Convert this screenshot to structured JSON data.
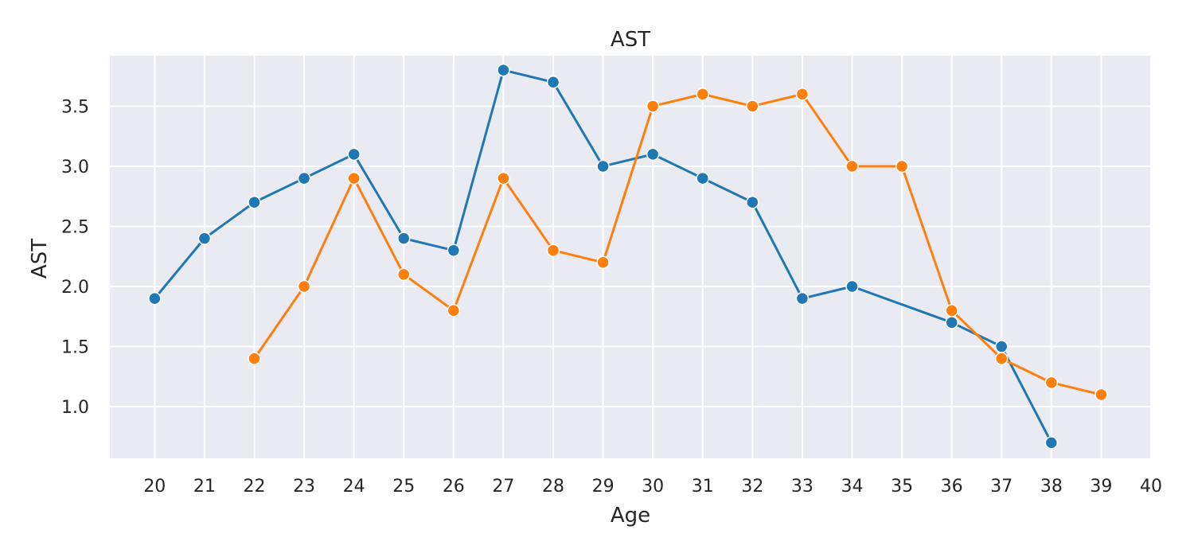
{
  "chart_data": {
    "type": "line",
    "title": "AST",
    "xlabel": "Age",
    "ylabel": "AST",
    "xlim": [
      19.1,
      40
    ],
    "ylim": [
      0.57,
      3.92
    ],
    "xticks": [
      20,
      21,
      22,
      23,
      24,
      25,
      26,
      27,
      28,
      29,
      30,
      31,
      32,
      33,
      34,
      35,
      36,
      37,
      38,
      39,
      40
    ],
    "yticks": [
      1.0,
      1.5,
      2.0,
      2.5,
      3.0,
      3.5
    ],
    "grid": true,
    "legend": "none",
    "background": "#eaeaf2",
    "series": [
      {
        "color": "#1f77b4",
        "x": [
          20,
          21,
          22,
          23,
          24,
          25,
          26,
          27,
          28,
          29,
          30,
          31,
          32,
          33,
          34,
          36,
          37,
          38
        ],
        "y": [
          1.9,
          2.4,
          2.7,
          2.9,
          3.1,
          2.4,
          2.3,
          3.8,
          3.7,
          3.0,
          3.1,
          2.9,
          2.7,
          1.9,
          2.0,
          1.7,
          1.5,
          0.7
        ]
      },
      {
        "color": "#ff7f0e",
        "x": [
          22,
          23,
          24,
          25,
          26,
          27,
          28,
          29,
          30,
          31,
          32,
          33,
          34,
          35,
          36,
          37,
          38,
          39
        ],
        "y": [
          1.4,
          2.0,
          2.9,
          2.1,
          1.8,
          2.9,
          2.3,
          2.2,
          3.5,
          3.6,
          3.5,
          3.6,
          3.0,
          3.0,
          1.8,
          1.4,
          1.2,
          1.1
        ]
      }
    ]
  }
}
